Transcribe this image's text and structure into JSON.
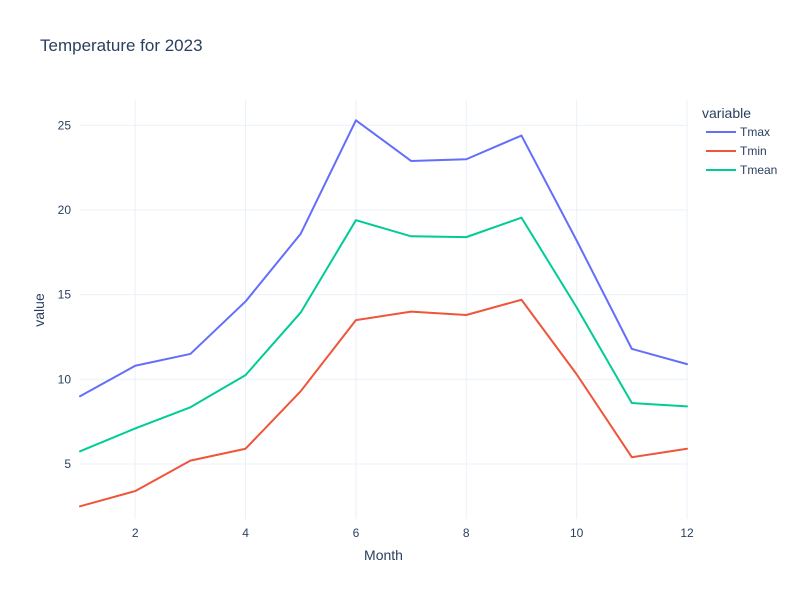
{
  "chart_data": {
    "type": "line",
    "title": "Temperature for 2023",
    "xlabel": "Month",
    "ylabel": "value",
    "legend_title": "variable",
    "legend_position": "top-right",
    "grid": true,
    "x": [
      1,
      2,
      3,
      4,
      5,
      6,
      7,
      8,
      9,
      10,
      11,
      12
    ],
    "xlim": [
      1,
      12
    ],
    "ylim": [
      1.75,
      26.5
    ],
    "x_ticks": [
      2,
      4,
      6,
      8,
      10,
      12
    ],
    "y_ticks": [
      5,
      10,
      15,
      20,
      25
    ],
    "x_tick_labels": [
      "2",
      "4",
      "6",
      "8",
      "10",
      "12"
    ],
    "y_tick_labels": [
      "5",
      "10",
      "15",
      "20",
      "25"
    ],
    "series": [
      {
        "name": "Tmax",
        "color": "#636efa",
        "values": [
          9.0,
          10.8,
          11.5,
          14.6,
          18.6,
          25.3,
          22.9,
          23.0,
          24.4,
          18.2,
          11.8,
          10.9
        ]
      },
      {
        "name": "Tmin",
        "color": "#ef553b",
        "values": [
          2.5,
          3.4,
          5.2,
          5.9,
          9.3,
          13.5,
          14.0,
          13.8,
          14.7,
          10.3,
          5.4,
          5.9
        ]
      },
      {
        "name": "Tmean",
        "color": "#00cc96",
        "values": [
          5.75,
          7.1,
          8.35,
          10.25,
          13.95,
          19.4,
          18.45,
          18.4,
          19.55,
          14.25,
          8.6,
          8.4
        ]
      }
    ]
  }
}
